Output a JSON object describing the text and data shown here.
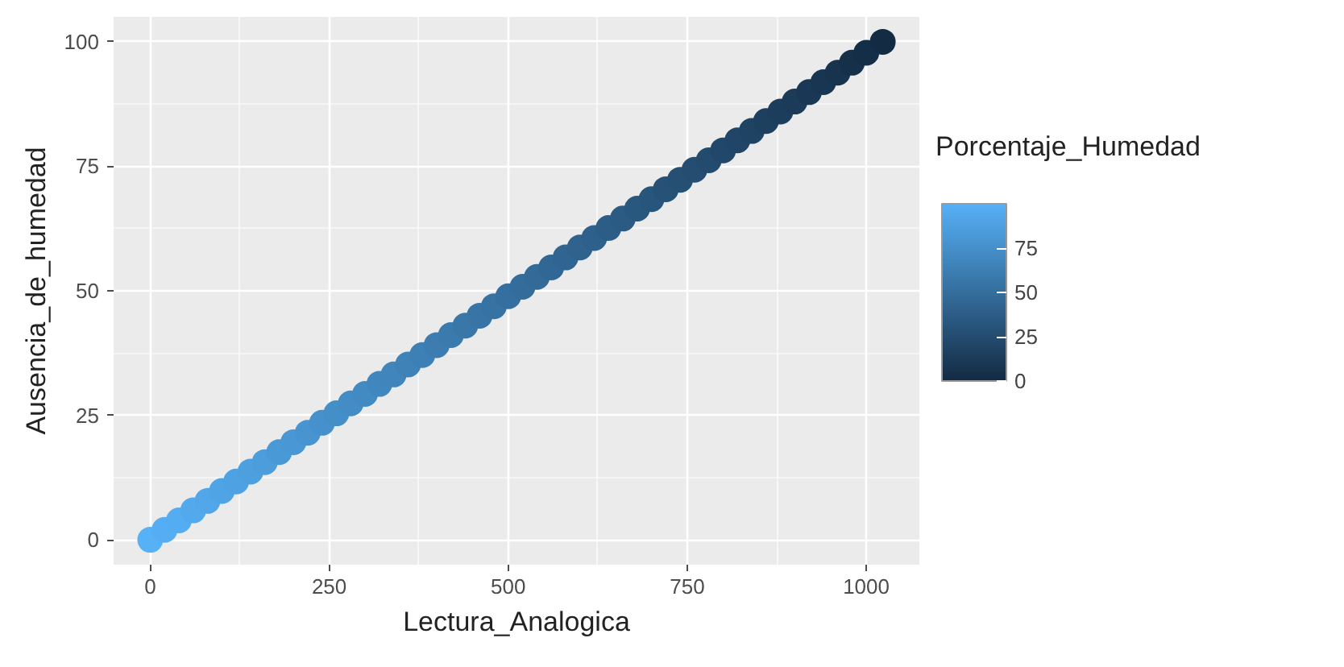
{
  "chart_data": {
    "type": "scatter",
    "xlabel": "Lectura_Analogica",
    "ylabel": "Ausencia_de_humedad",
    "clabel": "Porcentaje_Humedad",
    "x": [
      0,
      20,
      40,
      60,
      80,
      100,
      120,
      140,
      160,
      180,
      200,
      220,
      240,
      260,
      280,
      300,
      320,
      340,
      360,
      380,
      400,
      420,
      440,
      460,
      480,
      500,
      520,
      540,
      560,
      580,
      600,
      620,
      640,
      660,
      680,
      700,
      720,
      740,
      760,
      780,
      800,
      820,
      840,
      860,
      880,
      900,
      920,
      940,
      960,
      980,
      1000,
      1023
    ],
    "values": [
      0,
      2,
      3.9,
      5.9,
      7.8,
      9.8,
      11.7,
      13.7,
      15.6,
      17.6,
      19.6,
      21.5,
      23.5,
      25.4,
      27.4,
      29.3,
      31.3,
      33.2,
      35.2,
      37.1,
      39.1,
      41.1,
      43,
      45,
      46.9,
      48.9,
      50.8,
      52.8,
      54.7,
      56.7,
      58.7,
      60.6,
      62.6,
      64.5,
      66.5,
      68.4,
      70.4,
      72.3,
      74.3,
      76.2,
      78.2,
      80.2,
      82.1,
      84.1,
      86,
      88,
      89.9,
      91.9,
      93.8,
      95.8,
      97.8,
      100
    ],
    "cvalues": [
      100,
      98,
      96.1,
      94.1,
      92.2,
      90.2,
      88.3,
      86.3,
      84.4,
      82.4,
      80.4,
      78.5,
      76.5,
      74.6,
      72.6,
      70.7,
      68.7,
      66.8,
      64.8,
      62.9,
      60.9,
      58.9,
      57,
      55,
      53.1,
      51.1,
      49.2,
      47.2,
      45.3,
      43.3,
      41.3,
      39.4,
      37.4,
      35.5,
      33.5,
      31.6,
      29.6,
      27.7,
      25.7,
      23.8,
      21.8,
      19.8,
      17.9,
      15.9,
      14,
      12,
      10.1,
      8.1,
      6.2,
      4.2,
      2.2,
      0
    ],
    "xlim": [
      -51.15,
      1074.15
    ],
    "ylim": [
      -5,
      105
    ],
    "xticks": [
      0,
      250,
      500,
      750,
      1000
    ],
    "yticks": [
      0,
      25,
      50,
      75,
      100
    ],
    "clim": [
      0,
      100
    ],
    "cticks": [
      0,
      25,
      50,
      75
    ],
    "grid": true,
    "marker": "circle"
  }
}
